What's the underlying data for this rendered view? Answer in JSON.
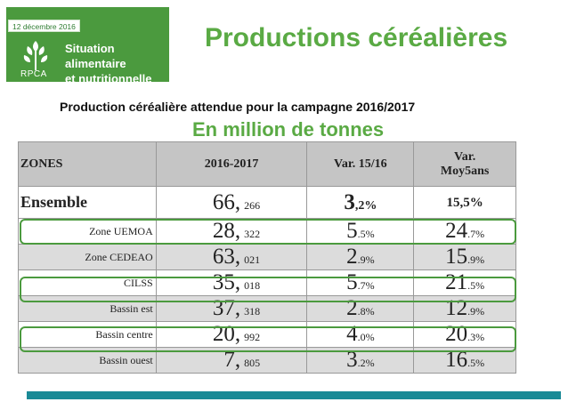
{
  "header": {
    "date": "12 décembre 2016",
    "logo_brand": "RPCA",
    "logo_line1": "Situation alimentaire",
    "logo_line2": "et nutritionnelle",
    "title": "Productions céréalières"
  },
  "subtitle": "Production céréalière attendue pour la campagne 2016/2017",
  "unit": "En million de tonnes",
  "colors": {
    "green": "#5aaa44",
    "logo_green": "#4b9a3e",
    "bar": "#1a8a96"
  },
  "table": {
    "headers": [
      "ZONES",
      "2016-2017",
      "Var. 15/16",
      "Var.",
      "Moy5ans"
    ],
    "rows": [
      {
        "zone": "Ensemble",
        "int": "66,",
        "dec": "266",
        "v1_int": "3",
        "v1_dec": ",2%",
        "v2": "15,5%"
      },
      {
        "zone": "Zone UEMOA",
        "int": "28,",
        "dec": "322",
        "v1_int": "5",
        "v1_dec": ".5%",
        "v2_int": "24",
        "v2_dec": ".7%"
      },
      {
        "zone": "Zone CEDEAO",
        "int": "63,",
        "dec": "021",
        "v1_int": "2",
        "v1_dec": ".9%",
        "v2_int": "15",
        "v2_dec": ".9%"
      },
      {
        "zone": "CILSS",
        "int": "35,",
        "dec": "018",
        "v1_int": "5",
        "v1_dec": ".7%",
        "v2_int": "21",
        "v2_dec": ".5%"
      },
      {
        "zone": "Bassin est",
        "int": "37,",
        "dec": "318",
        "v1_int": "2",
        "v1_dec": ".8%",
        "v2_int": "12",
        "v2_dec": ".9%"
      },
      {
        "zone": "Bassin centre",
        "int": "20,",
        "dec": "992",
        "v1_int": "4",
        "v1_dec": ".0%",
        "v2_int": "20",
        "v2_dec": ".3%"
      },
      {
        "zone": "Bassin ouest",
        "int": "7,",
        "dec": "805",
        "v1_int": "3",
        "v1_dec": ".2%",
        "v2_int": "16",
        "v2_dec": ".5%"
      }
    ]
  }
}
